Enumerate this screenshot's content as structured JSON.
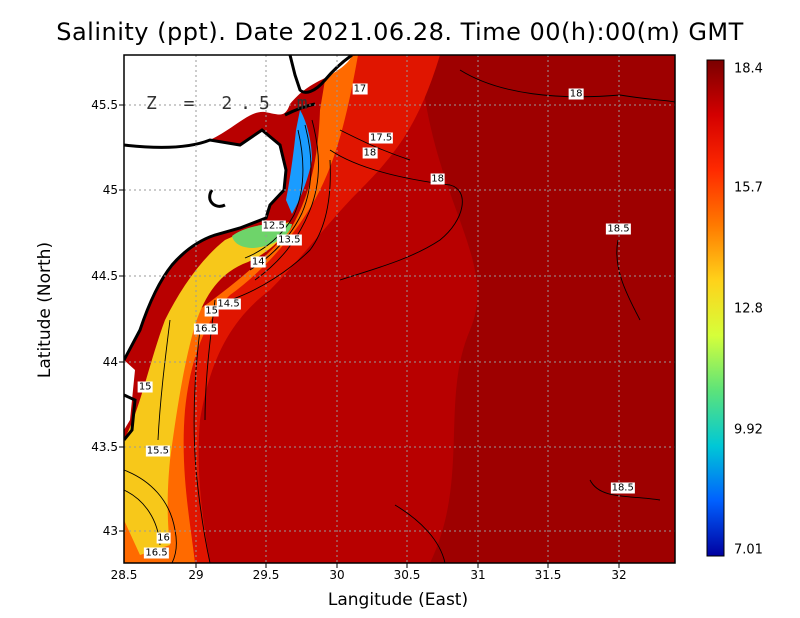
{
  "title": "Salinity (ppt). Date 2021.06.28. Time 00(h):00(m) GMT",
  "depth_label": "Z = 2.5 m",
  "axes": {
    "xlabel": "Langitude (East)",
    "ylabel": "Latitude (North)",
    "xticks": [
      "28.5",
      "29",
      "29.5",
      "30",
      "30.5",
      "31",
      "31.5",
      "32"
    ],
    "yticks": [
      "45.5",
      "45",
      "44.5",
      "44",
      "43.5",
      "43"
    ],
    "xlim": [
      28.5,
      32.4
    ],
    "ylim": [
      42.8,
      45.8
    ],
    "grid": true
  },
  "colorbar": {
    "ticks": [
      "18.4",
      "15.7",
      "12.8",
      "9.92",
      "7.01"
    ],
    "min": 7.01,
    "max": 18.4,
    "colors": [
      "#7a0000",
      "#d40000",
      "#ff2a00",
      "#ff7a00",
      "#ffd21a",
      "#d6ff3a",
      "#5ce37a",
      "#00c8d6",
      "#0060ff",
      "#0000a0"
    ]
  },
  "contour_labels": [
    {
      "text": "17",
      "lon": 30.17,
      "lat": 45.6
    },
    {
      "text": "18",
      "lon": 31.7,
      "lat": 45.57
    },
    {
      "text": "17.5",
      "lon": 30.32,
      "lat": 45.31
    },
    {
      "text": "18",
      "lon": 30.24,
      "lat": 45.22
    },
    {
      "text": "18",
      "lon": 30.72,
      "lat": 45.07
    },
    {
      "text": "18.5",
      "lon": 32.0,
      "lat": 44.77
    },
    {
      "text": "12.5",
      "lon": 29.56,
      "lat": 44.79
    },
    {
      "text": "13.5",
      "lon": 29.67,
      "lat": 44.71
    },
    {
      "text": "14",
      "lon": 29.45,
      "lat": 44.58
    },
    {
      "text": "14.5",
      "lon": 29.24,
      "lat": 44.33
    },
    {
      "text": "15",
      "lon": 29.12,
      "lat": 44.29
    },
    {
      "text": "16.5",
      "lon": 29.08,
      "lat": 44.18
    },
    {
      "text": "15",
      "lon": 28.65,
      "lat": 43.84
    },
    {
      "text": "15.5",
      "lon": 28.74,
      "lat": 43.46
    },
    {
      "text": "18.5",
      "lon": 32.03,
      "lat": 43.24
    },
    {
      "text": "16",
      "lon": 28.78,
      "lat": 42.95
    },
    {
      "text": "16.5",
      "lon": 28.73,
      "lat": 42.86
    }
  ]
}
